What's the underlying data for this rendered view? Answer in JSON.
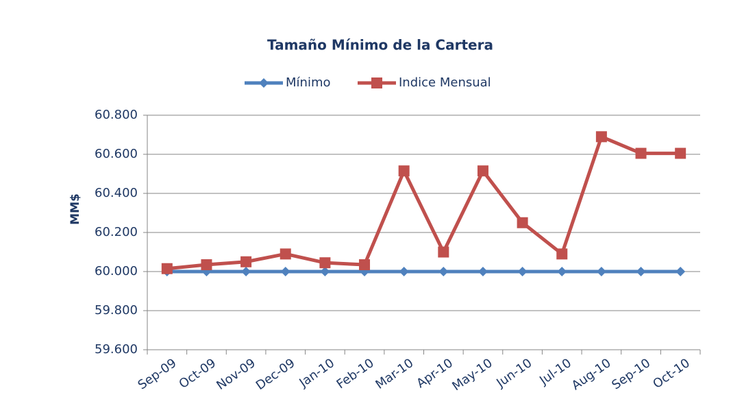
{
  "chart_data": {
    "type": "line",
    "title": "Tamaño Mínimo de la Cartera",
    "y_label": "MM$",
    "categories": [
      "Sep-09",
      "Oct-09",
      "Nov-09",
      "Dec-09",
      "Jan-10",
      "Feb-10",
      "Mar-10",
      "Apr-10",
      "May-10",
      "Jun-10",
      "Jul-10",
      "Aug-10",
      "Sep-10",
      "Oct-10"
    ],
    "series": [
      {
        "name": "Mínimo",
        "color": "#4f81bd",
        "marker": "diamond",
        "values": [
          60000,
          60000,
          60000,
          60000,
          60000,
          60000,
          60000,
          60000,
          60000,
          60000,
          60000,
          60000,
          60000,
          60000
        ]
      },
      {
        "name": "Indice Mensual",
        "color": "#c0504d",
        "marker": "square",
        "values": [
          60015,
          60035,
          60050,
          60090,
          60045,
          60035,
          60515,
          60100,
          60515,
          60250,
          60090,
          60690,
          60605,
          60605
        ]
      }
    ],
    "ylim": [
      59600,
      60800
    ],
    "yticks": [
      {
        "value": 59600,
        "label": "59.600"
      },
      {
        "value": 59800,
        "label": "59.800"
      },
      {
        "value": 60000,
        "label": "60.000"
      },
      {
        "value": 60200,
        "label": "60.200"
      },
      {
        "value": 60400,
        "label": "60.400"
      },
      {
        "value": 60600,
        "label": "60.600"
      },
      {
        "value": 60800,
        "label": "60.800"
      }
    ],
    "grid": true,
    "legend": "top"
  }
}
